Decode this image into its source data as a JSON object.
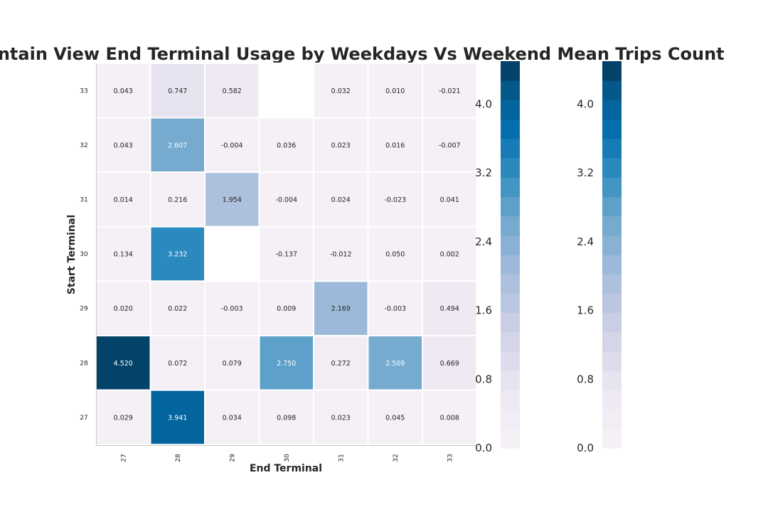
{
  "chart_data": {
    "type": "heatmap",
    "title": "Mountain View End Terminal Usage by Weekdays Vs Weekend Mean Trips Count",
    "xlabel": "End Terminal",
    "ylabel": "Start Terminal",
    "x_categories": [
      "27",
      "28",
      "29",
      "30",
      "31",
      "32",
      "33"
    ],
    "y_categories": [
      "33",
      "32",
      "31",
      "30",
      "29",
      "28",
      "27"
    ],
    "values": [
      [
        0.043,
        0.747,
        0.582,
        null,
        0.032,
        0.01,
        -0.021
      ],
      [
        0.043,
        2.607,
        -0.004,
        0.036,
        0.023,
        0.016,
        -0.007
      ],
      [
        0.014,
        0.216,
        1.954,
        -0.004,
        0.024,
        -0.023,
        0.041
      ],
      [
        0.134,
        3.232,
        null,
        -0.137,
        -0.012,
        0.05,
        0.002
      ],
      [
        0.02,
        0.022,
        -0.003,
        0.009,
        2.169,
        -0.003,
        0.494
      ],
      [
        4.52,
        0.072,
        0.079,
        2.75,
        0.272,
        2.509,
        0.669
      ],
      [
        0.029,
        3.941,
        0.034,
        0.098,
        0.023,
        0.045,
        0.008
      ]
    ],
    "value_labels": [
      [
        "0.043",
        "0.747",
        "0.582",
        "",
        "0.032",
        "0.010",
        "-0.021"
      ],
      [
        "0.043",
        "2.607",
        "-0.004",
        "0.036",
        "0.023",
        "0.016",
        "-0.007"
      ],
      [
        "0.014",
        "0.216",
        "1.954",
        "-0.004",
        "0.024",
        "-0.023",
        "0.041"
      ],
      [
        "0.134",
        "3.232",
        "",
        "-0.137",
        "-0.012",
        "0.050",
        "0.002"
      ],
      [
        "0.020",
        "0.022",
        "-0.003",
        "0.009",
        "2.169",
        "-0.003",
        "0.494"
      ],
      [
        "4.520",
        "0.072",
        "0.079",
        "2.750",
        "0.272",
        "2.509",
        "0.669"
      ],
      [
        "0.029",
        "3.941",
        "0.034",
        "0.098",
        "0.023",
        "0.045",
        "0.008"
      ]
    ],
    "color_range": [
      0.0,
      4.5
    ],
    "colormap": "PuBu",
    "colorbar_ticks": [
      "0.0",
      "0.8",
      "1.6",
      "2.4",
      "3.2",
      "4.0"
    ],
    "colorbar_tick_values": [
      0.0,
      0.8,
      1.6,
      2.4,
      3.2,
      4.0
    ],
    "colorbar_count": 2,
    "colorbar_bands": 20,
    "grid": false
  }
}
